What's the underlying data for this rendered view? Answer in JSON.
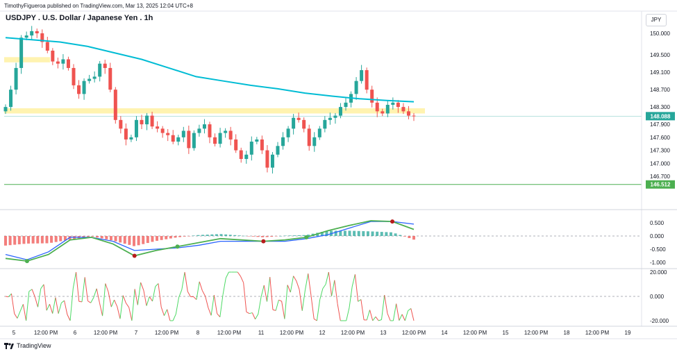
{
  "header": {
    "published": "TimothyFigueroa published on TradingView.com, Mar 13, 2025 12:04 UTC+8",
    "title": "USDJPY . U.S. Dollar / Japanese Yen . 1h",
    "currency": "JPY"
  },
  "footer": {
    "brand": "TradingView"
  },
  "colors": {
    "up": "#26a69a",
    "down": "#ef5350",
    "ma": "#00bcd4",
    "zone": "#fff3b0",
    "support": "#4caf50",
    "price_label": "#26a69a",
    "macd": "#4caf50",
    "signal": "#2962ff"
  },
  "chart_data": [
    {
      "type": "candlestick",
      "title": "USDJPY . U.S. Dollar / Japanese Yen . 1h",
      "y_ticks": [
        "150.000",
        "149.500",
        "149.100",
        "148.700",
        "148.300",
        "147.900",
        "147.600",
        "147.300",
        "147.000",
        "146.700"
      ],
      "y_tick_values": [
        150.0,
        149.5,
        149.1,
        148.7,
        148.3,
        147.9,
        147.6,
        147.3,
        147.0,
        146.7
      ],
      "x_ticks": [
        "5",
        "12:00 PM",
        "6",
        "12:00 PM",
        "7",
        "12:00 PM",
        "8",
        "12:00 PM",
        "11",
        "12:00 PM",
        "12",
        "12:00 PM",
        "13",
        "12:00 PM",
        "14",
        "12:00 PM",
        "15",
        "12:00 PM",
        "18",
        "12:00 PM",
        "19"
      ],
      "current_price": "148.088",
      "support_level": "146.512",
      "resistance_zones": [
        [
          149.33,
          149.45
        ],
        [
          148.15,
          148.27
        ]
      ],
      "close": [
        148.3,
        148.7,
        149.2,
        149.9,
        149.95,
        150.05,
        150.0,
        149.8,
        149.6,
        149.35,
        149.3,
        149.4,
        149.2,
        148.8,
        148.6,
        148.9,
        148.95,
        149.0,
        149.3,
        149.2,
        148.7,
        148.0,
        147.8,
        147.55,
        147.6,
        148.0,
        147.9,
        148.1,
        147.85,
        147.8,
        147.7,
        147.65,
        147.5,
        147.6,
        147.75,
        147.35,
        147.7,
        147.8,
        147.9,
        147.6,
        147.45,
        147.7,
        147.75,
        147.55,
        147.3,
        147.1,
        147.2,
        147.5,
        147.55,
        147.3,
        146.9,
        147.2,
        147.4,
        147.6,
        147.8,
        148.05,
        148.0,
        147.8,
        147.4,
        147.6,
        147.8,
        148.0,
        148.05,
        148.1,
        148.3,
        148.4,
        148.6,
        148.9,
        149.15,
        148.7,
        148.4,
        148.2,
        148.15,
        148.35,
        148.4,
        148.3,
        148.2,
        148.1,
        148.088
      ],
      "moving_average": [
        149.9,
        149.85,
        149.8,
        149.7,
        149.55,
        149.4,
        149.2,
        149.0,
        148.9,
        148.8,
        148.72,
        148.62,
        148.55,
        148.49,
        148.45,
        148.42
      ],
      "macd": {
        "y_ticks": [
          "0.500",
          "0.000",
          "-0.500",
          "-1.000"
        ],
        "y_tick_values": [
          0.5,
          0.0,
          -0.5,
          -1.0
        ],
        "macd_line": [
          -0.85,
          -0.95,
          -0.7,
          -0.15,
          -0.05,
          -0.3,
          -0.75,
          -0.55,
          -0.4,
          -0.25,
          -0.1,
          -0.15,
          -0.2,
          -0.15,
          -0.05,
          0.2,
          0.4,
          0.58,
          0.55,
          0.25
        ],
        "signal_line": [
          -0.7,
          -0.9,
          -0.6,
          -0.05,
          -0.05,
          -0.2,
          -0.55,
          -0.5,
          -0.45,
          -0.35,
          -0.2,
          -0.2,
          -0.2,
          -0.2,
          -0.1,
          0.05,
          0.3,
          0.55,
          0.55,
          0.45
        ]
      },
      "oscillator": {
        "y_ticks": [
          "20.000",
          "0.000",
          "-20.000"
        ],
        "y_tick_values": [
          20,
          0,
          -20
        ]
      }
    }
  ]
}
